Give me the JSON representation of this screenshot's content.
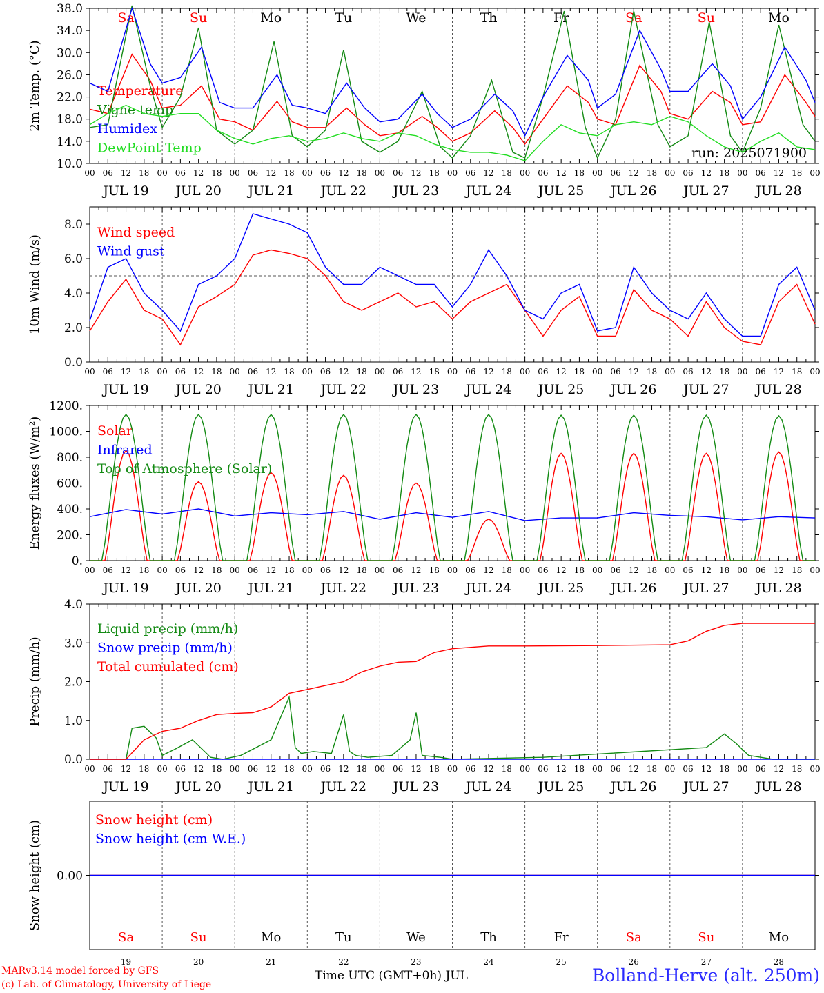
{
  "colors": {
    "red": "#ff0000",
    "green": "#00aa00",
    "darkgreen": "#138a13",
    "blue": "#0000ff",
    "lightgreen": "#22dd22",
    "axis": "#000000",
    "grid": "#555555",
    "station": "#2a2aff"
  },
  "days": {
    "weekday": [
      "Sa",
      "Su",
      "Mo",
      "Tu",
      "We",
      "Th",
      "Fr",
      "Sa",
      "Su",
      "Mo"
    ],
    "weekend": [
      true,
      true,
      false,
      false,
      false,
      false,
      false,
      true,
      true,
      false
    ],
    "date_labels": [
      "JUL 19",
      "JUL 20",
      "JUL 21",
      "JUL 22",
      "JUL 23",
      "JUL 24",
      "JUL 25",
      "JUL 26",
      "JUL 27",
      "JUL 28"
    ],
    "day_numbers": [
      "19",
      "20",
      "21",
      "22",
      "23",
      "24",
      "25",
      "26",
      "27",
      "28"
    ],
    "hour_labels": [
      "00",
      "06",
      "12",
      "18"
    ],
    "end_label": "00"
  },
  "footer": {
    "credit_line1": "MARv3.14 model forced by GFS",
    "credit_line2": "(c) Lab. of Climatology, University of Liege",
    "xaxis_title": "Time UTC (GMT+0h) JUL",
    "station": "Bolland-Herve (alt. 250m)"
  },
  "chart_data": [
    {
      "type": "line",
      "ylabel": "2m Temp. (°C)",
      "ylim": [
        10,
        38
      ],
      "yticks": [
        "10.0",
        "14.0",
        "18.0",
        "22.0",
        "26.0",
        "30.0",
        "34.0",
        "38.0"
      ],
      "run_label": "run: 2025071900",
      "x_unit": "hours since JUL 19 00 UTC",
      "series": [
        {
          "name": "Temperature",
          "color": "#ff0000",
          "x": [
            0,
            6,
            14,
            20,
            24,
            30,
            37,
            43,
            48,
            54,
            62,
            67,
            72,
            78,
            85,
            91,
            96,
            102,
            110,
            115,
            120,
            126,
            134,
            140,
            144,
            150,
            158,
            165,
            168,
            174,
            182,
            189,
            192,
            198,
            206,
            212,
            216,
            222,
            230,
            237,
            240
          ],
          "values": [
            19.8,
            19.0,
            29.7,
            25.0,
            20.0,
            20.5,
            24.0,
            18.0,
            17.5,
            16.0,
            21.2,
            17.5,
            16.5,
            16.5,
            20.0,
            17.0,
            15.0,
            15.5,
            18.5,
            16.5,
            14.0,
            15.5,
            19.5,
            16.5,
            13.5,
            18.0,
            24.0,
            21.0,
            18.0,
            17.0,
            27.7,
            23.0,
            19.0,
            18.0,
            23.0,
            21.0,
            17.0,
            17.5,
            26.0,
            21.0,
            18.5
          ]
        },
        {
          "name": "Vigne temp",
          "color": "#138a13",
          "x": [
            0,
            6,
            14,
            20,
            24,
            30,
            36,
            42,
            48,
            54,
            61,
            67,
            72,
            78,
            84,
            90,
            96,
            102,
            110,
            116,
            120,
            126,
            133,
            140,
            144,
            150,
            157,
            164,
            168,
            174,
            180,
            188,
            192,
            198,
            205,
            212,
            216,
            222,
            228,
            236,
            240
          ],
          "values": [
            16.5,
            17.0,
            38.5,
            24.0,
            16.5,
            22.0,
            34.5,
            16.0,
            13.5,
            16.0,
            32.0,
            15.0,
            13.0,
            16.0,
            30.5,
            14.0,
            12.0,
            14.0,
            23.0,
            13.0,
            11.0,
            15.0,
            25.0,
            12.0,
            11.0,
            22.0,
            37.5,
            16.5,
            11.0,
            18.0,
            37.5,
            17.0,
            13.0,
            15.0,
            35.5,
            15.0,
            12.0,
            20.0,
            35.0,
            17.0,
            14.0
          ]
        },
        {
          "name": "Humidex",
          "color": "#0000ff",
          "x": [
            0,
            6,
            14,
            20,
            24,
            30,
            37,
            43,
            48,
            54,
            62,
            67,
            72,
            78,
            85,
            91,
            96,
            102,
            110,
            115,
            120,
            126,
            134,
            140,
            144,
            150,
            158,
            165,
            168,
            174,
            182,
            189,
            192,
            198,
            206,
            212,
            216,
            222,
            230,
            237,
            240
          ],
          "values": [
            24.5,
            23.0,
            38.0,
            28.0,
            24.5,
            25.5,
            31.0,
            21.0,
            20.0,
            20.0,
            26.0,
            20.5,
            20.0,
            19.0,
            24.5,
            20.0,
            17.5,
            18.0,
            22.5,
            19.0,
            16.5,
            18.0,
            22.5,
            19.5,
            15.0,
            22.0,
            29.5,
            25.0,
            20.0,
            22.5,
            34.0,
            27.0,
            23.0,
            23.0,
            28.0,
            24.0,
            18.0,
            22.0,
            31.0,
            25.0,
            21.0
          ]
        },
        {
          "name": "DewPoint Temp",
          "color": "#22dd22",
          "x": [
            0,
            6,
            12,
            18,
            24,
            30,
            36,
            42,
            48,
            54,
            60,
            66,
            72,
            78,
            84,
            90,
            96,
            102,
            108,
            114,
            120,
            126,
            132,
            138,
            144,
            150,
            156,
            162,
            168,
            174,
            180,
            186,
            192,
            198,
            204,
            210,
            216,
            222,
            228,
            234,
            240
          ],
          "values": [
            17.0,
            19.0,
            20.5,
            19.0,
            18.5,
            19.0,
            19.0,
            16.0,
            14.5,
            13.5,
            14.5,
            15.0,
            14.0,
            14.5,
            15.5,
            14.5,
            14.0,
            15.5,
            15.0,
            13.5,
            12.5,
            12.0,
            12.0,
            11.5,
            10.5,
            14.0,
            17.0,
            15.5,
            15.0,
            17.0,
            17.5,
            17.0,
            18.5,
            17.5,
            15.0,
            13.0,
            12.0,
            14.0,
            15.5,
            13.0,
            12.5
          ]
        }
      ]
    },
    {
      "type": "line",
      "ylabel": "10m Wind (m/s)",
      "ylim": [
        0,
        9
      ],
      "yticks": [
        "0.0",
        "2.0",
        "4.0",
        "6.0",
        "8.0"
      ],
      "reference_line": 5.0,
      "x_unit": "hours since JUL 19 00 UTC",
      "series": [
        {
          "name": "Wind speed",
          "color": "#ff0000",
          "x": [
            0,
            6,
            12,
            18,
            24,
            30,
            36,
            42,
            48,
            54,
            60,
            66,
            72,
            78,
            84,
            90,
            96,
            102,
            108,
            114,
            120,
            126,
            132,
            138,
            144,
            150,
            156,
            162,
            168,
            174,
            180,
            186,
            192,
            198,
            204,
            210,
            216,
            222,
            228,
            234,
            240
          ],
          "values": [
            1.8,
            3.5,
            4.8,
            3.0,
            2.5,
            1.0,
            3.2,
            3.8,
            4.5,
            6.2,
            6.5,
            6.3,
            6.0,
            5.0,
            3.5,
            3.0,
            3.5,
            4.0,
            3.2,
            3.5,
            2.5,
            3.5,
            4.0,
            4.5,
            3.0,
            1.5,
            3.0,
            3.8,
            1.5,
            1.5,
            4.2,
            3.0,
            2.5,
            1.5,
            3.5,
            2.0,
            1.2,
            1.0,
            3.5,
            4.5,
            2.2
          ]
        },
        {
          "name": "Wind gust",
          "color": "#0000ff",
          "x": [
            0,
            6,
            12,
            18,
            24,
            30,
            36,
            42,
            48,
            54,
            60,
            66,
            72,
            78,
            84,
            90,
            96,
            102,
            108,
            114,
            120,
            126,
            132,
            138,
            144,
            150,
            156,
            162,
            168,
            174,
            180,
            186,
            192,
            198,
            204,
            210,
            216,
            222,
            228,
            234,
            240
          ],
          "values": [
            2.4,
            5.5,
            6.0,
            4.0,
            3.0,
            1.8,
            4.5,
            5.0,
            6.0,
            8.6,
            8.3,
            8.0,
            7.5,
            5.5,
            4.5,
            4.5,
            5.5,
            5.0,
            4.5,
            4.5,
            3.2,
            4.5,
            6.5,
            5.0,
            3.0,
            2.5,
            4.0,
            4.5,
            1.8,
            2.0,
            5.5,
            4.0,
            3.0,
            2.5,
            4.0,
            2.5,
            1.5,
            1.5,
            4.5,
            5.5,
            3.0
          ]
        }
      ]
    },
    {
      "type": "line",
      "ylabel": "Energy fluxes (W/m²)",
      "ylim": [
        0,
        1200
      ],
      "yticks": [
        "0.",
        "200.",
        "400.",
        "600.",
        "800.",
        "1000.",
        "1200."
      ],
      "x_unit": "hours since JUL 19 00 UTC",
      "series": [
        {
          "name": "Solar",
          "color": "#ff0000",
          "peaks": [
            850,
            610,
            680,
            660,
            600,
            320,
            830,
            830,
            830,
            840
          ],
          "peak_hour": 12,
          "half_width_hours": 7
        },
        {
          "name": "Infrared",
          "color": "#0000ff",
          "x": [
            0,
            12,
            24,
            36,
            48,
            60,
            72,
            84,
            96,
            108,
            120,
            132,
            144,
            156,
            168,
            180,
            192,
            204,
            216,
            228,
            240
          ],
          "values": [
            340,
            395,
            360,
            400,
            345,
            370,
            355,
            380,
            320,
            370,
            335,
            380,
            310,
            330,
            330,
            370,
            350,
            340,
            315,
            340,
            330
          ]
        },
        {
          "name": "Top of Atmosphere (Solar)",
          "color": "#138a13",
          "peaks": [
            1130,
            1130,
            1130,
            1130,
            1130,
            1130,
            1125,
            1125,
            1125,
            1120
          ],
          "peak_hour": 12,
          "half_width_hours": 8
        }
      ]
    },
    {
      "type": "line",
      "ylabel": "Precip (mm/h)",
      "ylim": [
        0,
        4
      ],
      "yticks": [
        "0.0",
        "1.0",
        "2.0",
        "3.0",
        "4.0"
      ],
      "x_unit": "hours since JUL 19 00 UTC",
      "series": [
        {
          "name": "Liquid precip (mm/h)",
          "color": "#138a13",
          "x": [
            0,
            12,
            14,
            18,
            22,
            24,
            28,
            34,
            40,
            44,
            50,
            60,
            66,
            68,
            70,
            74,
            80,
            84,
            86,
            88,
            92,
            100,
            106,
            108,
            110,
            116,
            120,
            150,
            204,
            210,
            214,
            218,
            222,
            226,
            230,
            240
          ],
          "values": [
            0,
            0,
            0.8,
            0.85,
            0.55,
            0.1,
            0.25,
            0.5,
            0.05,
            0,
            0.1,
            0.5,
            1.6,
            0.3,
            0.15,
            0.2,
            0.15,
            1.15,
            0.2,
            0.1,
            0.05,
            0.1,
            0.5,
            1.2,
            0.1,
            0.05,
            0,
            0.05,
            0.3,
            0.65,
            0.4,
            0.1,
            0.05,
            0,
            0,
            0
          ]
        },
        {
          "name": "Snow precip (mm/h)",
          "color": "#0000ff",
          "x": [
            0,
            240
          ],
          "values": [
            0,
            0
          ]
        },
        {
          "name": "Total cumulated (cm)",
          "color": "#ff0000",
          "x": [
            0,
            12,
            18,
            24,
            30,
            36,
            42,
            48,
            54,
            60,
            66,
            72,
            78,
            84,
            90,
            96,
            102,
            108,
            114,
            120,
            132,
            144,
            168,
            192,
            198,
            204,
            210,
            216,
            240
          ],
          "values": [
            0,
            0,
            0.5,
            0.72,
            0.8,
            1.0,
            1.15,
            1.18,
            1.2,
            1.35,
            1.7,
            1.8,
            1.9,
            2.0,
            2.25,
            2.4,
            2.5,
            2.52,
            2.75,
            2.85,
            2.92,
            2.92,
            2.93,
            2.95,
            3.05,
            3.3,
            3.45,
            3.5,
            3.5
          ]
        }
      ]
    },
    {
      "type": "line",
      "ylabel": "Snow height (cm)",
      "ylim": [
        -1,
        1
      ],
      "yticks": [
        "0.00"
      ],
      "x_unit": "hours since JUL 19 00 UTC",
      "series": [
        {
          "name": "Snow height (cm)",
          "color": "#ff0000",
          "x": [
            0,
            240
          ],
          "values": [
            0,
            0
          ]
        },
        {
          "name": "Snow height (cm W.E.)",
          "color": "#0000ff",
          "x": [
            0,
            240
          ],
          "values": [
            0,
            0
          ]
        }
      ]
    }
  ]
}
